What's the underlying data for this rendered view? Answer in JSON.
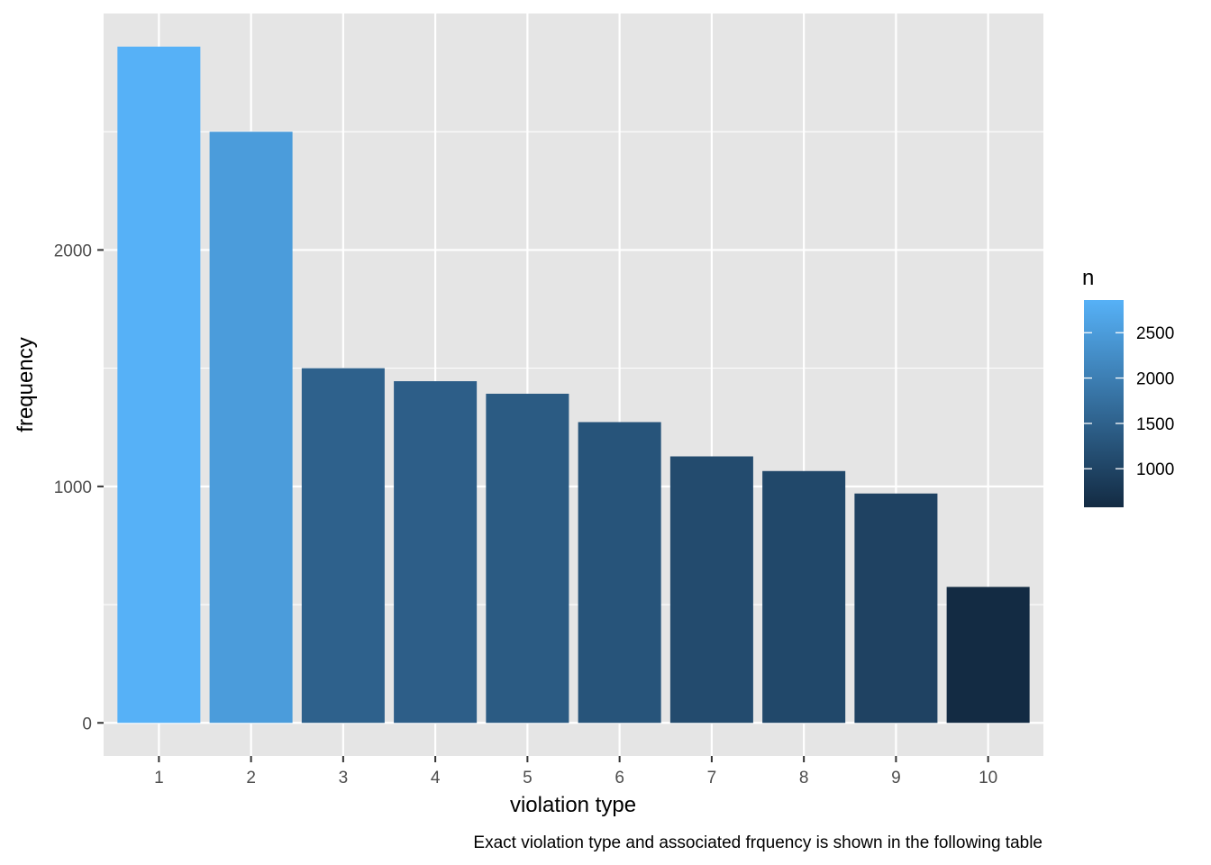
{
  "chart_data": {
    "type": "bar",
    "categories": [
      "1",
      "2",
      "3",
      "4",
      "5",
      "6",
      "7",
      "8",
      "9",
      "10"
    ],
    "values": [
      2860,
      2500,
      1500,
      1445,
      1392,
      1272,
      1127,
      1065,
      970,
      575
    ],
    "xlabel": "violation type",
    "ylabel": "frequency",
    "caption": "Exact violation type and associated frquency is shown in the following table",
    "ylim": [
      -140,
      3000
    ],
    "yticks": [
      0,
      1000,
      2000
    ],
    "ytick_labels": [
      "0",
      "1000",
      "2000"
    ],
    "grid": true,
    "panel_background": "#e5e5e5",
    "grid_color": "#ffffff",
    "legend": {
      "title": "n",
      "placement": "right",
      "type": "colorbar",
      "range": [
        575,
        2860
      ],
      "ticks": [
        1000,
        1500,
        2000,
        2500
      ],
      "tick_labels": [
        "1000",
        "1500",
        "2000",
        "2500"
      ],
      "low_color": "#132b43",
      "high_color": "#56b1f7"
    }
  }
}
